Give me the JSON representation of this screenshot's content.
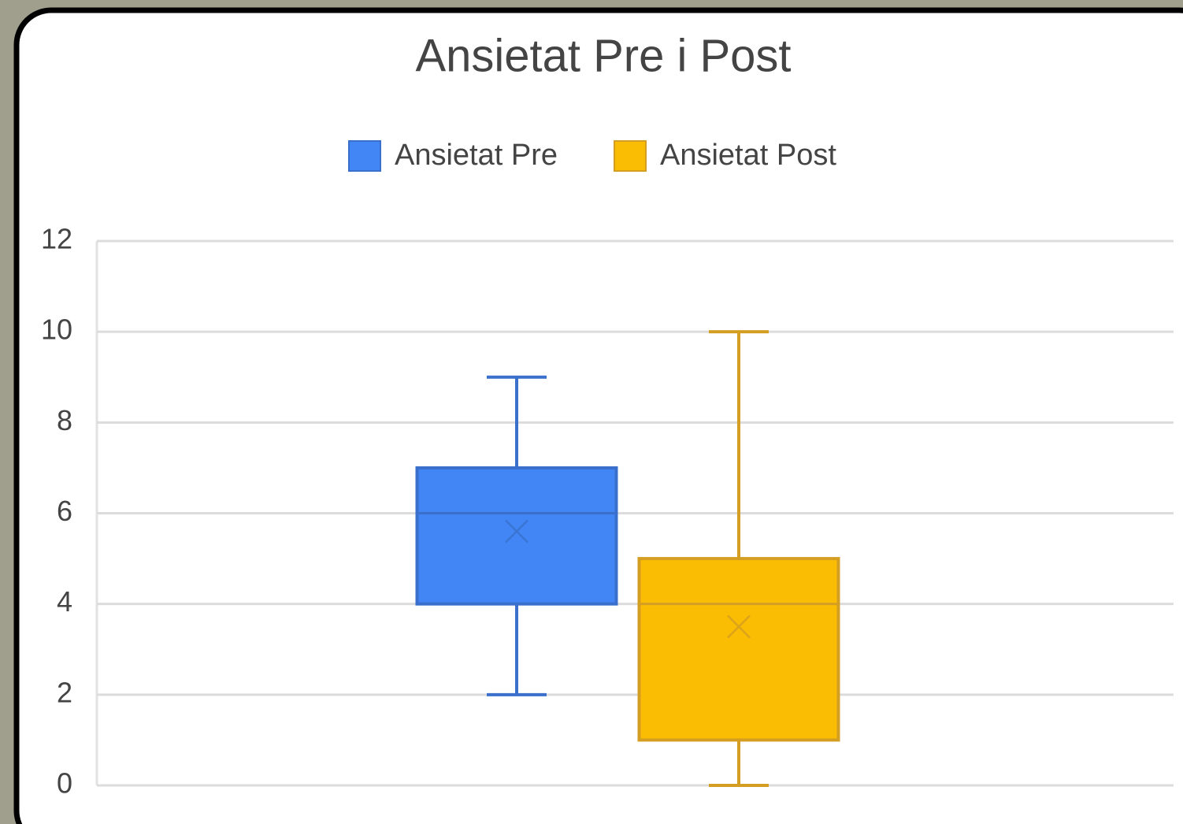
{
  "chart_data": {
    "type": "box",
    "title": "Ansietat Pre i Post",
    "series": [
      {
        "name": "Ansietat Pre",
        "color": "#4285f4",
        "stroke": "#3a70cc",
        "min": 2,
        "q1": 4,
        "median": 6,
        "q3": 7,
        "max": 9,
        "mean": 5.6
      },
      {
        "name": "Ansietat Post",
        "color": "#fbbc04",
        "stroke": "#d49e22",
        "min": 0,
        "q1": 1,
        "median": 4,
        "q3": 5,
        "max": 10,
        "mean": 3.5
      }
    ],
    "ylim": [
      0,
      12
    ],
    "yticks": [
      0,
      2,
      4,
      6,
      8,
      10,
      12
    ],
    "grid": true,
    "legend": "top"
  }
}
